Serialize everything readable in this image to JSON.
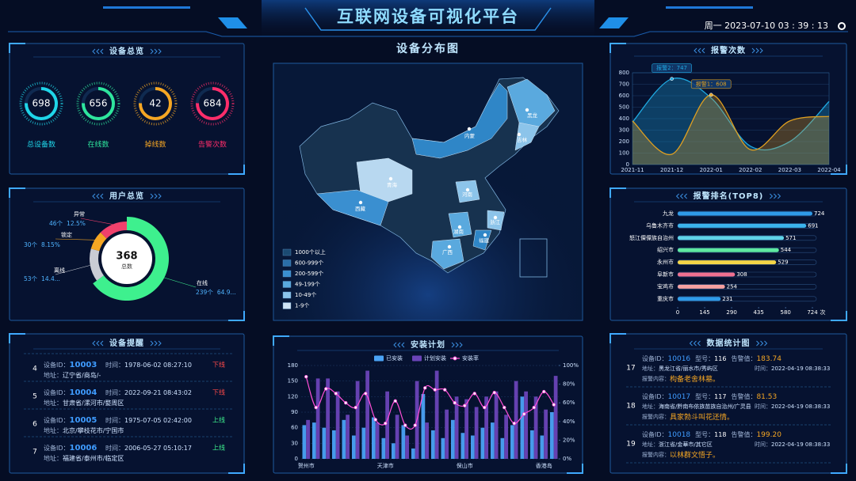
{
  "header": {
    "title": "互联网设备可视化平台",
    "datetime": "周一 2023-07-10 03 : 39 : 13"
  },
  "panels": {
    "overview": "设备总览",
    "reminders": "设备提醒",
    "map": "设备分布图",
    "stats": "数据统计图"
  },
  "overview": [
    {
      "value": 698,
      "label": "总设备数",
      "color": "#1fd5e8"
    },
    {
      "value": 656,
      "label": "在线数",
      "color": "#2ee59d"
    },
    {
      "value": 42,
      "label": "掉线数",
      "color": "#f5a623"
    },
    {
      "value": 684,
      "label": "告警次数",
      "color": "#ff2d6a"
    }
  ],
  "reminders": {
    "fields": {
      "id": "设备ID：",
      "time": "时间：",
      "address": "地址："
    },
    "items": [
      {
        "index": 4,
        "id": 10003,
        "time": "1978-06-02 08:27:10",
        "status": "下线",
        "address": "辽宁省/商岛/-"
      },
      {
        "index": 5,
        "id": 10004,
        "time": "2022-09-21 08:43:02",
        "status": "下线",
        "address": "甘肃省/漯河市/婺周区"
      },
      {
        "index": 6,
        "id": 10005,
        "time": "1975-07-05 02:42:00",
        "status": "上线",
        "address": "北京/攀枝花市/宁国市"
      },
      {
        "index": 7,
        "id": 10006,
        "time": "2006-05-27 05:10:17",
        "status": "上线",
        "address": "福建省/泰州市/临定区"
      }
    ]
  },
  "map": {
    "provinces": [
      "黑龙",
      "内蒙",
      "吉林",
      "青海",
      "河南",
      "西藏",
      "湖南",
      "浙江",
      "福建",
      "广西"
    ],
    "legend": [
      {
        "label": "1000个以上",
        "color": "#1b4a72"
      },
      {
        "label": "600-999个",
        "color": "#2a6ea8"
      },
      {
        "label": "200-599个",
        "color": "#3a8fd0"
      },
      {
        "label": "49-199个",
        "color": "#5aa9de"
      },
      {
        "label": "10-49个",
        "color": "#8cc4ea"
      },
      {
        "label": "1-9个",
        "color": "#cfe4f5"
      }
    ]
  },
  "stats": {
    "fields": {
      "id": "设备ID：",
      "model": "型号：",
      "alarm": "告警值：",
      "address": "地址：",
      "time": "时间：",
      "content": "报警内容："
    },
    "items": [
      {
        "index": 17,
        "id": 10016,
        "model": 116,
        "alarm": "183.74",
        "address": "黑龙江省/丽水市/秀屿区",
        "time": "2022-04-19 08:38:33",
        "content": "构备老舍林墓。"
      },
      {
        "index": 18,
        "id": 10017,
        "model": 117,
        "alarm": "81.53",
        "address": "海南省/黔南布依族苗族自治州/广灵县",
        "time": "2022-04-19 08:38:33",
        "content": "具家勃斗叫花还情。"
      },
      {
        "index": 19,
        "id": 10018,
        "model": 118,
        "alarm": "199.20",
        "address": "浙江省/金華市/其它区",
        "time": "2022-04-19 08:38:33",
        "content": "以林群文悟子。"
      }
    ]
  },
  "chart_data": [
    {
      "type": "donut",
      "title": "用户总览",
      "categories": [
        "在线",
        "离线",
        "锁定",
        "异常"
      ],
      "values": [
        239,
        53,
        30,
        46
      ],
      "value_labels": [
        "239个",
        "53个",
        "30个",
        "46个"
      ],
      "percent_labels": [
        "64.9...",
        "14.4...",
        "8.15%",
        "12.5%"
      ],
      "colors": [
        "#3ef08e",
        "#c9ccd4",
        "#f5a623",
        "#f0416c"
      ],
      "total": 368,
      "total_label": "总数"
    },
    {
      "type": "bar",
      "title": "安装计划",
      "categories": [
        "贺州市",
        null,
        null,
        null,
        null,
        null,
        null,
        null,
        "天津市",
        null,
        null,
        null,
        null,
        null,
        null,
        null,
        "保山市",
        null,
        null,
        null,
        null,
        null,
        null,
        null,
        "香港岛",
        null
      ],
      "series": [
        {
          "name": "已安装",
          "color": "#4aa3f5",
          "values": [
            65,
            70,
            60,
            55,
            75,
            45,
            60,
            80,
            40,
            30,
            65,
            20,
            125,
            55,
            40,
            75,
            50,
            45,
            60,
            70,
            40,
            65,
            120,
            55,
            45,
            90
          ]
        },
        {
          "name": "计划安装",
          "color": "#6a44b8",
          "values": [
            75,
            155,
            155,
            130,
            85,
            150,
            170,
            70,
            130,
            85,
            45,
            150,
            70,
            170,
            95,
            120,
            115,
            100,
            120,
            130,
            85,
            150,
            130,
            120,
            95,
            160
          ]
        },
        {
          "name": "安装率",
          "color": "#ff4fd8",
          "type": "line",
          "axis": "y2",
          "values": [
            88,
            55,
            75,
            70,
            60,
            55,
            70,
            42,
            38,
            62,
            36,
            36,
            76,
            74,
            74,
            60,
            57,
            70,
            55,
            71,
            55,
            38,
            48,
            55,
            72,
            58
          ]
        }
      ],
      "ylim": [
        0,
        180
      ],
      "yticks": [
        0,
        30,
        60,
        90,
        120,
        150,
        180
      ],
      "y2lim": [
        0,
        100
      ],
      "y2ticks": [
        {
          "value": 0,
          "label": "0%"
        },
        {
          "value": 20,
          "label": "20%"
        },
        {
          "value": 40,
          "label": "40%"
        },
        {
          "value": 60,
          "label": "60%"
        },
        {
          "value": 80,
          "label": "80%"
        },
        {
          "value": 100,
          "label": "100%"
        }
      ]
    },
    {
      "type": "line",
      "title": "报警次数",
      "categories": [
        "2021-11",
        "2021-12",
        "2022-01",
        "2022-02",
        "2022-03",
        "2022-04"
      ],
      "series": [
        {
          "color": "#1fa8e0",
          "values": [
            370,
            747,
            580,
            160,
            200,
            550
          ],
          "value_labels": [
            null,
            "报警2：747",
            null,
            null,
            null,
            null
          ]
        },
        {
          "color": "#e0a020",
          "values": [
            380,
            90,
            608,
            130,
            380,
            420
          ],
          "value_labels": [
            null,
            null,
            "报警1：608",
            null,
            null,
            null
          ]
        }
      ],
      "ylim": [
        0,
        800
      ],
      "yticks": [
        0,
        100,
        200,
        300,
        400,
        500,
        600,
        700,
        800
      ],
      "area": true
    },
    {
      "type": "bar",
      "orientation": "horizontal",
      "title": "报警排名(TOP8)",
      "categories": [
        "九龙",
        "乌鲁木齐市",
        "怒江傈僳族自治州",
        "绍兴市",
        "永州市",
        "阜新市",
        "宝鸡市",
        "重庆市"
      ],
      "values": [
        724,
        691,
        571,
        544,
        529,
        308,
        254,
        231
      ],
      "colors": [
        "#2f9be8",
        "#3bb4ec",
        "#5fd3e8",
        "#5ee8a0",
        "#f5d547",
        "#f07090",
        "#f5a0a0",
        "#2f9be8"
      ],
      "xlim": [
        0,
        724
      ],
      "xticks": [
        0,
        145,
        290,
        435,
        580,
        724
      ],
      "unit": "次"
    }
  ]
}
